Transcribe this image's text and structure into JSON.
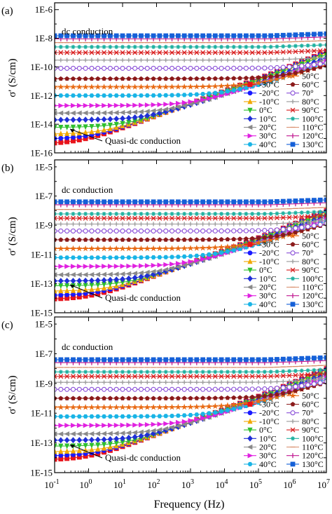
{
  "x_axis_label": "Frequency (Hz)",
  "x_tick_labels": [
    "10-1",
    "100",
    "101",
    "102",
    "103",
    "104",
    "105",
    "106",
    "107"
  ],
  "chart_data": [
    {
      "type": "line",
      "panel_label": "(a)",
      "ylabel": "σ' (S/cm)",
      "y_tick_labels": [
        "1E-6",
        "1E-8",
        "1E-10",
        "1E-12",
        "1E-14",
        "1E-16"
      ],
      "xlim": [
        0.1,
        10000000
      ],
      "ylim": [
        1e-16,
        3e-06
      ],
      "x_scale": "log",
      "y_scale": "log",
      "legend_placement": "bottom-right",
      "annotations": [
        {
          "text": "dc conduction"
        },
        {
          "text": "Quasi-dc conduction"
        }
      ],
      "series": [
        {
          "name": "-30°C",
          "color": "#e8131b",
          "marker": "square-open",
          "dc": 4e-16,
          "slope": 0.87
        },
        {
          "name": "-20°C",
          "color": "#1a1aff",
          "marker": "circle",
          "dc": 9e-16,
          "slope": 0.86
        },
        {
          "name": "-10°C",
          "color": "#f0a800",
          "marker": "triangle-up",
          "dc": 2e-15,
          "slope": 0.85
        },
        {
          "name": "0°C",
          "color": "#2fbf2f",
          "marker": "triangle-down",
          "dc": 6e-15,
          "slope": 0.83
        },
        {
          "name": "10°C",
          "color": "#1f2fd6",
          "marker": "diamond",
          "dc": 2e-14,
          "slope": 0.8
        },
        {
          "name": "20°C",
          "color": "#8a8a8a",
          "marker": "triangle-left",
          "dc": 6e-14,
          "slope": 0.78
        },
        {
          "name": "30°C",
          "color": "#e020e0",
          "marker": "triangle-right",
          "dc": 2e-13,
          "slope": 0.76
        },
        {
          "name": "40°C",
          "color": "#19b4e6",
          "marker": "hexagon",
          "dc": 1e-12,
          "slope": 0.74
        },
        {
          "name": "50°C",
          "color": "#e86a14",
          "marker": "star",
          "dc": 4e-12,
          "slope": 0.72
        },
        {
          "name": "60°C",
          "color": "#8b1a1a",
          "marker": "pentagon",
          "dc": 1.5e-11,
          "slope": 0.7
        },
        {
          "name": "70°",
          "color": "#8a4fd8",
          "marker": "circle-open",
          "dc": 8e-11,
          "slope": 0.68
        },
        {
          "name": "80°C",
          "color": "#9b9b9b",
          "marker": "plus",
          "dc": 3e-10,
          "slope": 0.66
        },
        {
          "name": "90°C",
          "color": "#d92020",
          "marker": "cross",
          "dc": 1e-09,
          "slope": 0.64
        },
        {
          "name": "100°C",
          "color": "#20b0a0",
          "marker": "asterisk",
          "dc": 2.5e-09,
          "slope": 0.62
        },
        {
          "name": "110°C",
          "color": "#d88c6a",
          "marker": "dash",
          "dc": 5e-09,
          "slope": 0.6
        },
        {
          "name": "120°C",
          "color": "#c01890",
          "marker": "vbar",
          "dc": 9e-09,
          "slope": 0.58
        },
        {
          "name": "130°C",
          "color": "#1560d8",
          "marker": "square",
          "dc": 1.5e-08,
          "slope": 0.55
        }
      ]
    },
    {
      "type": "line",
      "panel_label": "(b)",
      "ylabel": "σ' (S/cm)",
      "y_tick_labels": [
        "1E-5",
        "1E-7",
        "1E-9",
        "1E-11",
        "1E-13",
        "1E-15"
      ],
      "xlim": [
        0.1,
        10000000
      ],
      "ylim": [
        1e-15,
        3e-05
      ],
      "x_scale": "log",
      "y_scale": "log",
      "legend_placement": "bottom-right",
      "annotations": [
        {
          "text": "dc conduction"
        },
        {
          "text": "Quasi-dc conduction"
        }
      ],
      "series": [
        {
          "name": "-30°C",
          "color": "#e8131b",
          "marker": "square-open",
          "dc": 8e-15,
          "slope": 0.86
        },
        {
          "name": "-20°C",
          "color": "#1a1aff",
          "marker": "circle",
          "dc": 1.5e-14,
          "slope": 0.85
        },
        {
          "name": "-10°C",
          "color": "#f0a800",
          "marker": "triangle-up",
          "dc": 3e-14,
          "slope": 0.84
        },
        {
          "name": "0°C",
          "color": "#2fbf2f",
          "marker": "triangle-down",
          "dc": 7e-14,
          "slope": 0.82
        },
        {
          "name": "10°C",
          "color": "#1f2fd6",
          "marker": "diamond",
          "dc": 1.5e-13,
          "slope": 0.8
        },
        {
          "name": "20°C",
          "color": "#8a8a8a",
          "marker": "triangle-left",
          "dc": 4e-13,
          "slope": 0.78
        },
        {
          "name": "30°C",
          "color": "#e020e0",
          "marker": "triangle-right",
          "dc": 1.5e-12,
          "slope": 0.76
        },
        {
          "name": "40°C",
          "color": "#19b4e6",
          "marker": "hexagon",
          "dc": 6e-12,
          "slope": 0.74
        },
        {
          "name": "50°C",
          "color": "#e86a14",
          "marker": "star",
          "dc": 2.5e-11,
          "slope": 0.72
        },
        {
          "name": "60°C",
          "color": "#8b1a1a",
          "marker": "pentagon",
          "dc": 1e-10,
          "slope": 0.7
        },
        {
          "name": "70°",
          "color": "#8a4fd8",
          "marker": "circle-open",
          "dc": 4e-10,
          "slope": 0.68
        },
        {
          "name": "80°C",
          "color": "#9b9b9b",
          "marker": "plus",
          "dc": 1.2e-09,
          "slope": 0.66
        },
        {
          "name": "90°C",
          "color": "#d92020",
          "marker": "cross",
          "dc": 3e-09,
          "slope": 0.64
        },
        {
          "name": "100°C",
          "color": "#20b0a0",
          "marker": "asterisk",
          "dc": 6e-09,
          "slope": 0.62
        },
        {
          "name": "110°C",
          "color": "#d88c6a",
          "marker": "dash",
          "dc": 1.2e-08,
          "slope": 0.6
        },
        {
          "name": "120°C",
          "color": "#c01890",
          "marker": "vbar",
          "dc": 2.5e-08,
          "slope": 0.58
        },
        {
          "name": "130°C",
          "color": "#1560d8",
          "marker": "square",
          "dc": 4e-08,
          "slope": 0.55
        }
      ]
    },
    {
      "type": "line",
      "panel_label": "(c)",
      "ylabel": "σ' (S/cm)",
      "y_tick_labels": [
        "1E-5",
        "1E-7",
        "1E-9",
        "1E-11",
        "1E-13",
        "1E-15"
      ],
      "xlim": [
        0.1,
        10000000
      ],
      "ylim": [
        1e-15,
        3e-05
      ],
      "x_scale": "log",
      "y_scale": "log",
      "legend_placement": "bottom-right",
      "annotations": [
        {
          "text": "dc conduction"
        },
        {
          "text": "Quasi-dc conduction"
        }
      ],
      "series": [
        {
          "name": "-30°C",
          "color": "#e8131b",
          "marker": "square-open",
          "dc": 7e-15,
          "slope": 0.86
        },
        {
          "name": "-20°C",
          "color": "#1a1aff",
          "marker": "circle",
          "dc": 1.3e-14,
          "slope": 0.85
        },
        {
          "name": "-10°C",
          "color": "#f0a800",
          "marker": "triangle-up",
          "dc": 2.5e-14,
          "slope": 0.84
        },
        {
          "name": "0°C",
          "color": "#2fbf2f",
          "marker": "triangle-down",
          "dc": 6e-14,
          "slope": 0.82
        },
        {
          "name": "10°C",
          "color": "#1f2fd6",
          "marker": "diamond",
          "dc": 1.5e-13,
          "slope": 0.8
        },
        {
          "name": "20°C",
          "color": "#8a8a8a",
          "marker": "triangle-left",
          "dc": 4e-13,
          "slope": 0.78
        },
        {
          "name": "30°C",
          "color": "#e020e0",
          "marker": "triangle-right",
          "dc": 1.5e-12,
          "slope": 0.76
        },
        {
          "name": "40°C",
          "color": "#19b4e6",
          "marker": "hexagon",
          "dc": 6e-12,
          "slope": 0.74
        },
        {
          "name": "50°C",
          "color": "#e86a14",
          "marker": "star",
          "dc": 2.5e-11,
          "slope": 0.72
        },
        {
          "name": "60°C",
          "color": "#8b1a1a",
          "marker": "pentagon",
          "dc": 1e-10,
          "slope": 0.7
        },
        {
          "name": "70°",
          "color": "#8a4fd8",
          "marker": "circle-open",
          "dc": 4e-10,
          "slope": 0.68
        },
        {
          "name": "80°C",
          "color": "#9b9b9b",
          "marker": "plus",
          "dc": 1.2e-09,
          "slope": 0.66
        },
        {
          "name": "90°C",
          "color": "#d92020",
          "marker": "cross",
          "dc": 3e-09,
          "slope": 0.64
        },
        {
          "name": "100°C",
          "color": "#20b0a0",
          "marker": "asterisk",
          "dc": 6e-09,
          "slope": 0.62
        },
        {
          "name": "110°C",
          "color": "#d88c6a",
          "marker": "dash",
          "dc": 1.2e-08,
          "slope": 0.6
        },
        {
          "name": "120°C",
          "color": "#c01890",
          "marker": "vbar",
          "dc": 2.5e-08,
          "slope": 0.58
        },
        {
          "name": "130°C",
          "color": "#1560d8",
          "marker": "square",
          "dc": 4e-08,
          "slope": 0.55
        }
      ]
    }
  ]
}
